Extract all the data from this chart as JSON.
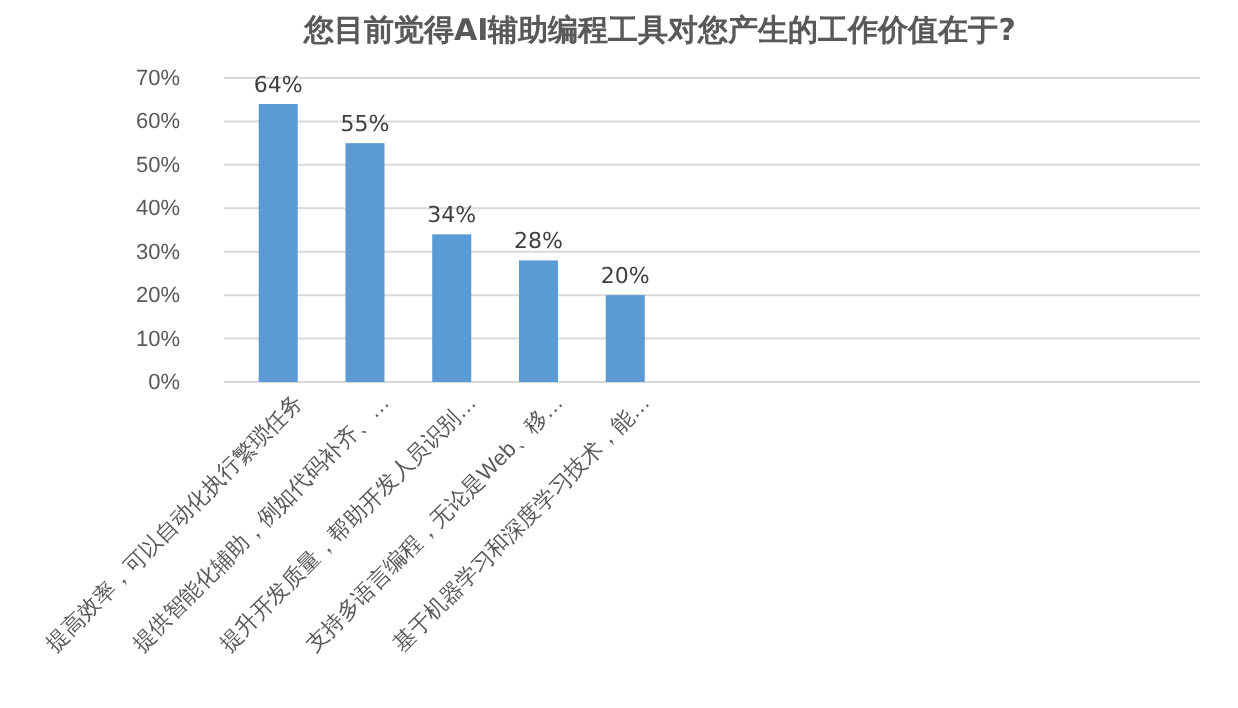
{
  "chart_data": {
    "type": "bar",
    "title": "您目前觉得AI辅助编程工具对您产生的工作价值在于?",
    "categories": [
      "提高效率，可以自动化执行繁琐任务",
      "提供智能化辅助，例如代码补齐、…",
      "提升开发质量，帮助开发人员识别…",
      "支持多语言编程，无论是Web、移…",
      "基于机器学习和深度学习技术，能…",
      null,
      null,
      null,
      null,
      null,
      null
    ],
    "values": [
      64,
      55,
      34,
      28,
      20,
      null,
      null,
      null,
      null,
      null,
      null
    ],
    "value_labels": [
      "64%",
      "55%",
      "34%",
      "28%",
      "20%",
      null,
      null,
      null,
      null,
      null,
      null
    ],
    "color": "#5b9bd5",
    "ylim": [
      0,
      70
    ],
    "yticks": [
      {
        "value": 0,
        "label": "0%"
      },
      {
        "value": 10,
        "label": "10%"
      },
      {
        "value": 20,
        "label": "20%"
      },
      {
        "value": 30,
        "label": "30%"
      },
      {
        "value": 40,
        "label": "40%"
      },
      {
        "value": 50,
        "label": "50%"
      },
      {
        "value": 60,
        "label": "60%"
      },
      {
        "value": 70,
        "label": "70%"
      }
    ],
    "grid": "y"
  }
}
